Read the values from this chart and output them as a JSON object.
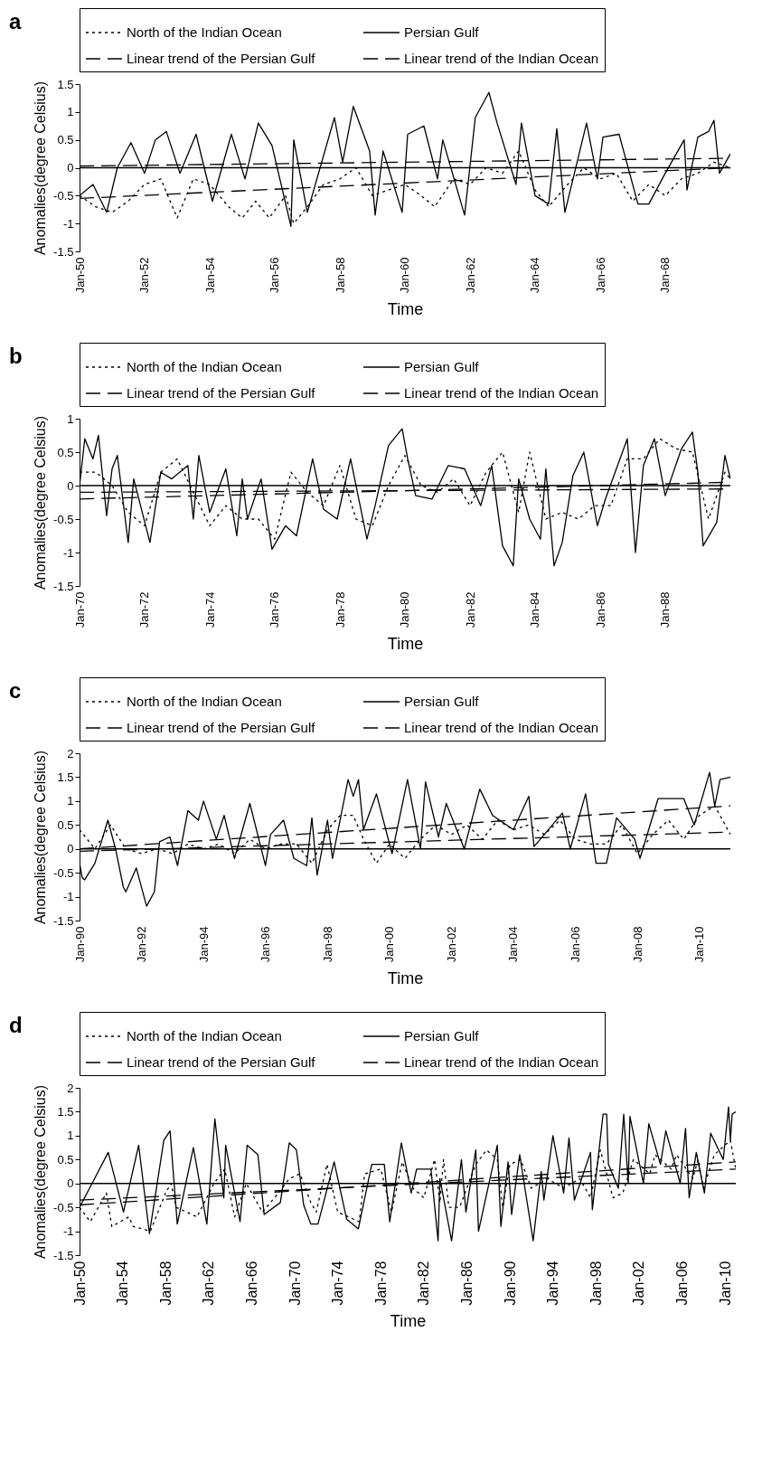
{
  "chart_data": [
    {
      "type": "line",
      "title": "a",
      "xlabel": "Time",
      "ylabel": "Anomalies(degree Celsius)",
      "legend": "top",
      "grid": false,
      "marker": "none",
      "xlim": [
        "1950-01",
        "1970-01"
      ],
      "ylim": [
        -1.5,
        1.5
      ],
      "yticks": [
        -1.5,
        -1,
        -0.5,
        0,
        0.5,
        1,
        1.5
      ],
      "xticks": [
        {
          "value": "1950-01",
          "label": "Jan-50"
        },
        {
          "value": "1952-01",
          "label": "Jan-52"
        },
        {
          "value": "1954-01",
          "label": "Jan-54"
        },
        {
          "value": "1956-01",
          "label": "Jan-56"
        },
        {
          "value": "1958-01",
          "label": "Jan-58"
        },
        {
          "value": "1960-01",
          "label": "Jan-60"
        },
        {
          "value": "1962-01",
          "label": "Jan-62"
        },
        {
          "value": "1964-01",
          "label": "Jan-64"
        },
        {
          "value": "1966-01",
          "label": "Jan-66"
        },
        {
          "value": "1968-01",
          "label": "Jan-68"
        }
      ],
      "ref_lines": [
        {
          "axis": "y",
          "value": 0
        }
      ],
      "series": [
        {
          "name": "North of the Indian Ocean",
          "color": "#000000",
          "line_style": "dotted",
          "x": [
            "1950-01",
            "1950-07",
            "1951-01",
            "1951-07",
            "1952-01",
            "1952-07",
            "1953-01",
            "1953-07",
            "1954-01",
            "1954-08",
            "1955-01",
            "1955-06",
            "1955-11",
            "1956-05",
            "1956-08",
            "1957-01",
            "1957-07",
            "1958-01",
            "1958-07",
            "1959-01",
            "1959-07",
            "1960-01",
            "1960-07",
            "1960-12",
            "1961-07",
            "1962-01",
            "1962-07",
            "1963-01",
            "1963-07",
            "1964-01",
            "1964-06",
            "1965-01",
            "1965-07",
            "1966-01",
            "1966-07",
            "1967-01",
            "1967-07",
            "1968-01",
            "1968-07",
            "1969-01",
            "1969-07",
            "1970-01"
          ],
          "values": [
            -0.5,
            -0.7,
            -0.8,
            -0.6,
            -0.3,
            -0.2,
            -0.9,
            -0.2,
            -0.3,
            -0.7,
            -0.9,
            -0.6,
            -0.9,
            -0.5,
            -1.0,
            -0.7,
            -0.3,
            -0.2,
            0.0,
            -0.5,
            -0.4,
            -0.3,
            -0.5,
            -0.7,
            -0.2,
            -0.3,
            0.0,
            -0.1,
            0.3,
            -0.4,
            -0.7,
            -0.3,
            0.0,
            -0.2,
            -0.1,
            -0.6,
            -0.3,
            -0.5,
            -0.2,
            -0.1,
            0.1,
            0.0
          ]
        },
        {
          "name": "Persian Gulf",
          "color": "#000000",
          "line_style": "solid",
          "x": [
            "1950-01",
            "1950-06",
            "1950-11",
            "1951-03",
            "1951-08",
            "1952-01",
            "1952-05",
            "1952-09",
            "1953-02",
            "1953-08",
            "1954-02",
            "1954-09",
            "1955-02",
            "1955-07",
            "1955-12",
            "1956-07",
            "1956-08",
            "1957-01",
            "1957-11",
            "1958-02",
            "1958-06",
            "1958-12",
            "1959-02",
            "1959-05",
            "1959-12",
            "1960-02",
            "1960-08",
            "1961-01",
            "1961-03",
            "1961-11",
            "1962-03",
            "1962-08",
            "1962-11",
            "1963-06",
            "1963-08",
            "1964-01",
            "1964-06",
            "1964-09",
            "1964-12",
            "1965-08",
            "1965-12",
            "1966-02",
            "1966-08",
            "1967-03",
            "1967-07",
            "1968-01",
            "1968-08",
            "1968-09",
            "1969-01",
            "1969-05",
            "1969-07",
            "1969-09",
            "1970-01"
          ],
          "values": [
            -0.5,
            -0.3,
            -0.8,
            0.0,
            0.45,
            -0.1,
            0.5,
            0.65,
            -0.1,
            0.6,
            -0.6,
            0.6,
            -0.2,
            0.8,
            0.4,
            -1.05,
            0.5,
            -0.8,
            0.9,
            0.1,
            1.1,
            0.3,
            -0.85,
            0.3,
            -0.8,
            0.6,
            0.75,
            -0.2,
            0.5,
            -0.85,
            0.9,
            1.35,
            0.8,
            -0.3,
            0.8,
            -0.5,
            -0.65,
            0.7,
            -0.8,
            0.8,
            -0.2,
            0.55,
            0.6,
            -0.65,
            -0.65,
            -0.1,
            0.5,
            -0.4,
            0.55,
            0.65,
            0.85,
            -0.1,
            0.25
          ]
        },
        {
          "name": "Linear trend of the Persian Gulf",
          "color": "#000000",
          "line_style": "dashed",
          "x": [
            "1950-01",
            "1970-01"
          ],
          "values": [
            0.03,
            0.17
          ]
        },
        {
          "name": "Linear trend of the Indian Ocean",
          "color": "#000000",
          "line_style": "dashed",
          "x": [
            "1950-01",
            "1970-01"
          ],
          "values": [
            -0.55,
            0.0
          ]
        }
      ]
    },
    {
      "type": "line",
      "title": "b",
      "xlabel": "Time",
      "ylabel": "Anomalies(degree Celsius)",
      "legend": "top",
      "grid": false,
      "marker": "none",
      "xlim": [
        "1970-01",
        "1990-01"
      ],
      "ylim": [
        -1.5,
        1
      ],
      "yticks": [
        -1.5,
        -1,
        -0.5,
        0,
        0.5,
        1
      ],
      "xticks": [
        {
          "value": "1970-01",
          "label": "Jan-70"
        },
        {
          "value": "1972-01",
          "label": "Jan-72"
        },
        {
          "value": "1974-01",
          "label": "Jan-74"
        },
        {
          "value": "1976-01",
          "label": "Jan-76"
        },
        {
          "value": "1978-01",
          "label": "Jan-78"
        },
        {
          "value": "1980-01",
          "label": "Jan-80"
        },
        {
          "value": "1982-01",
          "label": "Jan-82"
        },
        {
          "value": "1984-01",
          "label": "Jan-84"
        },
        {
          "value": "1986-01",
          "label": "Jan-86"
        },
        {
          "value": "1988-01",
          "label": "Jan-88"
        }
      ],
      "ref_lines": [
        {
          "axis": "y",
          "value": 0
        }
      ],
      "series": [
        {
          "name": "North of the Indian Ocean",
          "color": "#000000",
          "line_style": "dotted",
          "x": [
            "1970-01",
            "1970-07",
            "1971-01",
            "1971-07",
            "1972-01",
            "1972-07",
            "1973-01",
            "1973-07",
            "1974-01",
            "1974-07",
            "1975-01",
            "1975-07",
            "1976-01",
            "1976-07",
            "1977-01",
            "1977-07",
            "1978-01",
            "1978-07",
            "1979-01",
            "1979-07",
            "1980-01",
            "1980-07",
            "1981-01",
            "1981-07",
            "1982-01",
            "1982-07",
            "1983-01",
            "1983-07",
            "1983-11",
            "1984-05",
            "1984-11",
            "1985-05",
            "1985-11",
            "1986-05",
            "1986-11",
            "1987-05",
            "1987-11",
            "1988-05",
            "1988-11",
            "1989-05",
            "1989-11",
            "1990-01"
          ],
          "values": [
            0.2,
            0.2,
            0.0,
            -0.4,
            -0.6,
            0.2,
            0.4,
            -0.1,
            -0.6,
            -0.3,
            -0.5,
            -0.5,
            -0.8,
            0.2,
            -0.1,
            -0.3,
            0.3,
            -0.5,
            -0.6,
            0.0,
            0.45,
            0.0,
            -0.1,
            0.1,
            -0.3,
            0.2,
            0.5,
            -0.4,
            0.5,
            -0.5,
            -0.4,
            -0.5,
            -0.3,
            -0.3,
            0.4,
            0.4,
            0.7,
            0.55,
            0.5,
            -0.5,
            0.2,
            0.1
          ]
        },
        {
          "name": "Persian Gulf",
          "color": "#000000",
          "line_style": "solid",
          "x": [
            "1970-01",
            "1970-03",
            "1970-06",
            "1970-08",
            "1970-11",
            "1971-01",
            "1971-03",
            "1971-07",
            "1971-09",
            "1972-03",
            "1972-07",
            "1972-11",
            "1973-05",
            "1973-07",
            "1973-09",
            "1974-01",
            "1974-07",
            "1974-11",
            "1975-01",
            "1975-03",
            "1975-08",
            "1975-12",
            "1976-05",
            "1976-09",
            "1977-03",
            "1977-07",
            "1977-12",
            "1978-05",
            "1978-11",
            "1979-02",
            "1979-07",
            "1979-12",
            "1980-02",
            "1980-05",
            "1980-11",
            "1981-05",
            "1981-11",
            "1982-05",
            "1982-09",
            "1983-01",
            "1983-05",
            "1983-07",
            "1983-11",
            "1984-03",
            "1984-05",
            "1984-08",
            "1984-11",
            "1985-03",
            "1985-07",
            "1985-12",
            "1986-03",
            "1986-11",
            "1987-02",
            "1987-05",
            "1987-09",
            "1988-01",
            "1988-07",
            "1988-11",
            "1989-01",
            "1989-03",
            "1989-08",
            "1989-11",
            "1990-01"
          ],
          "values": [
            0.0,
            0.7,
            0.4,
            0.75,
            -0.45,
            0.25,
            0.45,
            -0.85,
            0.1,
            -0.85,
            0.2,
            0.1,
            0.3,
            -0.5,
            0.45,
            -0.4,
            0.25,
            -0.75,
            0.1,
            -0.5,
            0.1,
            -0.95,
            -0.6,
            -0.75,
            0.4,
            -0.35,
            -0.5,
            0.4,
            -0.8,
            -0.3,
            0.6,
            0.85,
            0.4,
            -0.15,
            -0.2,
            0.3,
            0.25,
            -0.3,
            0.3,
            -0.9,
            -1.2,
            0.1,
            -0.5,
            -0.8,
            0.25,
            -1.2,
            -0.85,
            0.15,
            0.5,
            -0.6,
            -0.2,
            0.7,
            -1.0,
            0.3,
            0.7,
            -0.15,
            0.55,
            0.8,
            0.2,
            -0.9,
            -0.55,
            0.45,
            0.1
          ]
        },
        {
          "name": "Linear trend of the Persian Gulf",
          "color": "#000000",
          "line_style": "dashed",
          "x": [
            "1970-01",
            "1990-01"
          ],
          "values": [
            -0.1,
            -0.05
          ]
        },
        {
          "name": "Linear trend of the Indian Ocean",
          "color": "#000000",
          "line_style": "dashed",
          "x": [
            "1970-01",
            "1990-01"
          ],
          "values": [
            -0.2,
            0.05
          ]
        }
      ]
    },
    {
      "type": "line",
      "title": "c",
      "xlabel": "Time",
      "ylabel": "Anomalies(degree Celsius)",
      "legend": "top",
      "grid": false,
      "marker": "none",
      "xlim": [
        "1990-01",
        "2011-01"
      ],
      "ylim": [
        -1.5,
        2
      ],
      "yticks": [
        -1.5,
        -1,
        -0.5,
        0,
        0.5,
        1,
        1.5,
        2
      ],
      "xticks": [
        {
          "value": "1990-01",
          "label": "Jan-90"
        },
        {
          "value": "1992-01",
          "label": "Jan-92"
        },
        {
          "value": "1994-01",
          "label": "Jan-94"
        },
        {
          "value": "1996-01",
          "label": "Jan-96"
        },
        {
          "value": "1998-01",
          "label": "Jan-98"
        },
        {
          "value": "2000-01",
          "label": "Jan-00"
        },
        {
          "value": "2002-01",
          "label": "Jan-02"
        },
        {
          "value": "2004-01",
          "label": "Jan-04"
        },
        {
          "value": "2006-01",
          "label": "Jan-06"
        },
        {
          "value": "2008-01",
          "label": "Jan-08"
        },
        {
          "value": "2010-01",
          "label": "Jan-10"
        }
      ],
      "ref_lines": [
        {
          "axis": "y",
          "value": 0
        }
      ],
      "series": [
        {
          "name": "North of the Indian Ocean",
          "color": "#000000",
          "line_style": "dotted",
          "x": [
            "1990-01",
            "1990-07",
            "1991-01",
            "1991-07",
            "1992-01",
            "1992-07",
            "1993-01",
            "1993-07",
            "1994-01",
            "1994-07",
            "1995-01",
            "1995-07",
            "1996-01",
            "1996-07",
            "1997-01",
            "1997-07",
            "1998-01",
            "1998-06",
            "1998-11",
            "1999-03",
            "1999-08",
            "2000-01",
            "2000-07",
            "2001-01",
            "2001-07",
            "2002-01",
            "2002-07",
            "2003-01",
            "2003-07",
            "2004-01",
            "2004-07",
            "2005-01",
            "2005-07",
            "2006-01",
            "2006-07",
            "2007-01",
            "2007-07",
            "2008-01",
            "2008-07",
            "2009-01",
            "2009-07",
            "2010-01",
            "2010-07",
            "2011-01"
          ],
          "values": [
            0.4,
            0.0,
            0.5,
            0.0,
            -0.1,
            0.0,
            -0.1,
            0.1,
            0.0,
            0.1,
            -0.1,
            0.2,
            0.0,
            0.1,
            0.1,
            -0.3,
            0.4,
            0.7,
            0.7,
            0.2,
            -0.3,
            0.1,
            -0.2,
            0.2,
            0.5,
            0.3,
            0.5,
            0.2,
            0.6,
            0.4,
            0.5,
            0.3,
            0.6,
            0.2,
            0.1,
            0.1,
            0.5,
            -0.1,
            0.3,
            0.6,
            0.2,
            0.7,
            0.9,
            0.3
          ]
        },
        {
          "name": "Persian Gulf",
          "color": "#000000",
          "line_style": "solid",
          "x": [
            "1990-01",
            "1990-02",
            "1990-03",
            "1990-07",
            "1990-12",
            "1991-03",
            "1991-06",
            "1991-07",
            "1991-11",
            "1992-03",
            "1992-06",
            "1992-08",
            "1992-12",
            "1993-03",
            "1993-07",
            "1993-11",
            "1994-01",
            "1994-06",
            "1994-09",
            "1995-01",
            "1995-07",
            "1996-01",
            "1996-03",
            "1996-08",
            "1996-12",
            "1997-05",
            "1997-07",
            "1997-09",
            "1998-01",
            "1998-03",
            "1998-09",
            "1998-11",
            "1999-01",
            "1999-03",
            "1999-08",
            "2000-02",
            "2000-08",
            "2001-01",
            "2001-03",
            "2001-08",
            "2001-11",
            "2002-06",
            "2002-12",
            "2003-05",
            "2004-01",
            "2004-07",
            "2004-09",
            "2005-08",
            "2005-11",
            "2006-05",
            "2006-09",
            "2007-01",
            "2007-05",
            "2007-12",
            "2008-02",
            "2008-09",
            "2009-07",
            "2009-11",
            "2010-05",
            "2010-07",
            "2010-09",
            "2011-01"
          ],
          "values": [
            -0.3,
            -0.6,
            -0.65,
            -0.3,
            0.6,
            0.0,
            -0.8,
            -0.9,
            -0.4,
            -1.2,
            -0.9,
            0.15,
            0.25,
            -0.35,
            0.8,
            0.6,
            1.0,
            0.2,
            0.7,
            -0.2,
            0.95,
            -0.35,
            0.3,
            0.6,
            -0.2,
            -0.35,
            0.65,
            -0.55,
            0.6,
            -0.2,
            1.45,
            1.1,
            1.45,
            0.4,
            1.15,
            -0.1,
            1.45,
            0.0,
            1.4,
            0.25,
            0.95,
            0.0,
            1.25,
            0.7,
            0.4,
            1.1,
            0.05,
            0.75,
            0.0,
            1.15,
            -0.3,
            -0.3,
            0.65,
            0.2,
            -0.2,
            1.05,
            1.05,
            0.5,
            1.6,
            0.9,
            1.45,
            1.5
          ]
        },
        {
          "name": "Linear trend of the Persian Gulf",
          "color": "#000000",
          "line_style": "dashed",
          "x": [
            "1990-01",
            "2011-01"
          ],
          "values": [
            0.0,
            0.9
          ]
        },
        {
          "name": "Linear trend of the Indian Ocean",
          "color": "#000000",
          "line_style": "dashed",
          "x": [
            "1990-01",
            "2011-01"
          ],
          "values": [
            -0.05,
            0.35
          ]
        }
      ]
    },
    {
      "type": "line",
      "title": "d",
      "xlabel": "Time",
      "ylabel": "Anomalies(degree Celsius)",
      "legend": "top",
      "grid": false,
      "marker": "none",
      "xlim": [
        "1950-01",
        "2011-01"
      ],
      "ylim": [
        -1.5,
        2
      ],
      "yticks": [
        -1.5,
        -1,
        -0.5,
        0,
        0.5,
        1,
        1.5,
        2
      ],
      "xticks": [
        {
          "value": "1950-01",
          "label": "Jan-50"
        },
        {
          "value": "1954-01",
          "label": "Jan-54"
        },
        {
          "value": "1958-01",
          "label": "Jan-58"
        },
        {
          "value": "1962-01",
          "label": "Jan-62"
        },
        {
          "value": "1966-01",
          "label": "Jan-66"
        },
        {
          "value": "1970-01",
          "label": "Jan-70"
        },
        {
          "value": "1974-01",
          "label": "Jan-74"
        },
        {
          "value": "1978-01",
          "label": "Jan-78"
        },
        {
          "value": "1982-01",
          "label": "Jan-82"
        },
        {
          "value": "1986-01",
          "label": "Jan-86"
        },
        {
          "value": "1990-01",
          "label": "Jan-90"
        },
        {
          "value": "1994-01",
          "label": "Jan-94"
        },
        {
          "value": "1998-01",
          "label": "Jan-98"
        },
        {
          "value": "2002-01",
          "label": "Jan-02"
        },
        {
          "value": "2006-01",
          "label": "Jan-06"
        },
        {
          "value": "2010-01",
          "label": "Jan-10"
        }
      ],
      "ref_lines": [
        {
          "axis": "y",
          "value": 0
        }
      ],
      "series": [
        {
          "name": "North of the Indian Ocean",
          "color": "#000000",
          "line_style": "dotted",
          "x": [
            "1950-01",
            "1951-01",
            "1952-07",
            "1953-01",
            "1954-08",
            "1955-01",
            "1956-08",
            "1958-01",
            "1958-07",
            "1959-01",
            "1960-12",
            "1962-07",
            "1963-07",
            "1964-06",
            "1965-07",
            "1967-01",
            "1968-07",
            "1969-07",
            "1970-07",
            "1971-07",
            "1972-01",
            "1973-01",
            "1974-01",
            "1976-01",
            "1976-07",
            "1978-01",
            "1979-01",
            "1980-01",
            "1981-01",
            "1982-01",
            "1983-01",
            "1983-07",
            "1983-11",
            "1984-05",
            "1985-05",
            "1986-11",
            "1987-11",
            "1988-11",
            "1989-05",
            "1990-01",
            "1991-01",
            "1992-01",
            "1993-07",
            "1995-01",
            "1996-07",
            "1997-07",
            "1998-06",
            "1999-08",
            "2000-07",
            "2001-07",
            "2003-01",
            "2003-07",
            "2005-01",
            "2005-07",
            "2007-01",
            "2007-07",
            "2008-01",
            "2009-01",
            "2010-07",
            "2011-01"
          ],
          "values": [
            -0.5,
            -0.8,
            -0.2,
            -0.9,
            -0.7,
            -0.9,
            -1.0,
            -0.2,
            0.0,
            -0.5,
            -0.7,
            0.0,
            0.3,
            -0.7,
            0.0,
            -0.6,
            -0.2,
            0.1,
            0.2,
            -0.4,
            -0.6,
            0.4,
            -0.6,
            -0.8,
            0.2,
            0.3,
            -0.6,
            0.45,
            -0.1,
            -0.3,
            0.5,
            -0.4,
            0.5,
            -0.5,
            -0.5,
            0.4,
            0.7,
            0.5,
            -0.5,
            0.4,
            0.5,
            -0.1,
            0.1,
            -0.1,
            0.1,
            -0.3,
            0.7,
            -0.3,
            -0.2,
            0.5,
            0.2,
            0.6,
            0.3,
            0.6,
            0.1,
            0.5,
            -0.1,
            0.6,
            0.9,
            0.3
          ]
        },
        {
          "name": "Persian Gulf",
          "color": "#000000",
          "line_style": "solid",
          "x": [
            "1950-01",
            "1951-03",
            "1952-09",
            "1954-02",
            "1955-07",
            "1956-07",
            "1957-11",
            "1958-06",
            "1959-02",
            "1960-08",
            "1961-11",
            "1962-08",
            "1963-06",
            "1963-08",
            "1964-12",
            "1965-08",
            "1966-08",
            "1967-03",
            "1968-09",
            "1969-07",
            "1970-03",
            "1970-11",
            "1971-07",
            "1972-03",
            "1973-09",
            "1974-11",
            "1975-12",
            "1977-03",
            "1978-05",
            "1978-11",
            "1979-12",
            "1980-11",
            "1981-05",
            "1982-09",
            "1983-05",
            "1983-07",
            "1984-08",
            "1985-07",
            "1985-12",
            "1986-11",
            "1987-02",
            "1988-11",
            "1989-03",
            "1989-11",
            "1990-03",
            "1990-12",
            "1992-03",
            "1992-12",
            "1993-03",
            "1994-01",
            "1995-01",
            "1995-07",
            "1996-01",
            "1997-07",
            "1997-09",
            "1998-09",
            "1999-01",
            "1999-03",
            "2000-02",
            "2000-08",
            "2001-01",
            "2001-03",
            "2002-06",
            "2002-12",
            "2004-01",
            "2004-07",
            "2005-11",
            "2006-05",
            "2006-09",
            "2007-05",
            "2008-02",
            "2008-09",
            "2009-11",
            "2010-05",
            "2010-07",
            "2010-09",
            "2011-01"
          ],
          "values": [
            -0.5,
            0.0,
            0.65,
            -0.6,
            0.8,
            -1.05,
            0.9,
            1.1,
            -0.85,
            0.75,
            -0.85,
            1.35,
            -0.3,
            0.8,
            -0.8,
            0.8,
            0.6,
            -0.65,
            -0.4,
            0.85,
            0.7,
            -0.45,
            -0.85,
            -0.85,
            0.45,
            -0.75,
            -0.95,
            0.4,
            0.4,
            -0.8,
            0.85,
            -0.2,
            0.3,
            0.3,
            -1.2,
            0.1,
            -1.2,
            0.5,
            -0.6,
            0.7,
            -1.0,
            0.8,
            -0.9,
            0.45,
            -0.65,
            0.6,
            -1.2,
            0.25,
            -0.35,
            1.0,
            -0.2,
            0.95,
            -0.35,
            0.65,
            -0.55,
            1.45,
            1.45,
            0.4,
            -0.1,
            1.45,
            0.0,
            1.4,
            0.0,
            1.25,
            0.4,
            1.1,
            0.0,
            1.15,
            -0.3,
            0.65,
            -0.2,
            1.05,
            0.5,
            1.6,
            0.9,
            1.45,
            1.5
          ]
        },
        {
          "name": "Linear trend of the Persian Gulf",
          "color": "#000000",
          "line_style": "dashed",
          "x": [
            "1950-01",
            "2011-01"
          ],
          "values": [
            -0.45,
            0.45
          ]
        },
        {
          "name": "Linear trend of the Indian Ocean",
          "color": "#000000",
          "line_style": "dashed",
          "x": [
            "1950-01",
            "2011-01"
          ],
          "values": [
            -0.35,
            0.3
          ]
        }
      ]
    }
  ]
}
